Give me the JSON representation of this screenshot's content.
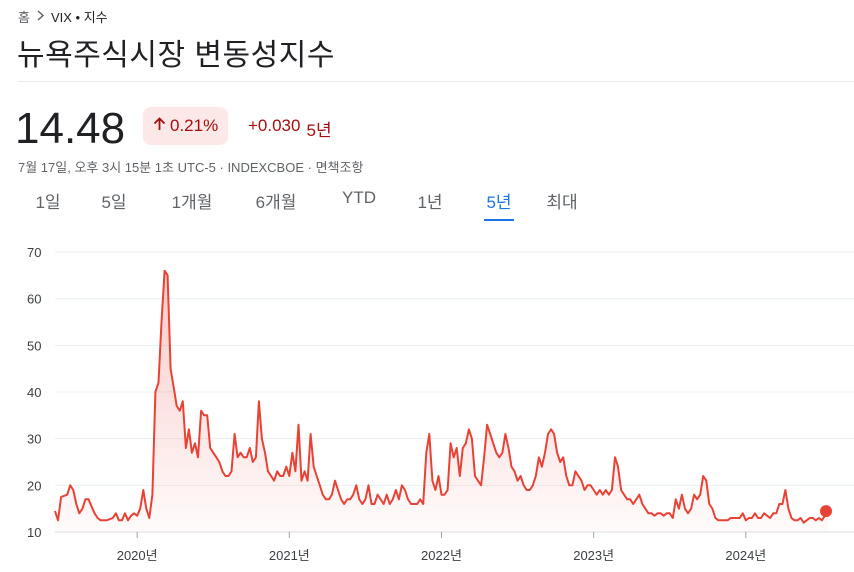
{
  "breadcrumb": {
    "home": "홈",
    "current": "VIX • 지수"
  },
  "title": "뉴욕주식시장 변동성지수",
  "quote": {
    "price": "14.48",
    "change_percent": "0.21%",
    "change_value": "+0.030",
    "change_period": "5년",
    "meta": "7월 17일, 오후 3시 15분 1초 UTC-5 · INDEXCBOE · 면책조항"
  },
  "tabs": [
    {
      "label": "1일"
    },
    {
      "label": "5일"
    },
    {
      "label": "1개월"
    },
    {
      "label": "6개월"
    },
    {
      "label": "YTD"
    },
    {
      "label": "1년"
    },
    {
      "label": "5년",
      "active": true
    },
    {
      "label": "최대"
    }
  ],
  "colors": {
    "line": "#e94235",
    "accent": "#1a73e8",
    "negative_bg": "#fce8e6",
    "negative_text": "#a50e0e"
  },
  "icons": {
    "breadcrumb_separator": "chevron-right-icon",
    "change_direction": "arrow-up-icon"
  },
  "chart_data": {
    "type": "area",
    "ylim": [
      10,
      70
    ],
    "yticks": [
      10,
      20,
      30,
      40,
      50,
      60,
      70
    ],
    "xlim": [
      2019.46,
      2024.54
    ],
    "xticks": [
      {
        "label": "2020년",
        "x": 2020.0
      },
      {
        "label": "2021년",
        "x": 2021.0
      },
      {
        "label": "2022년",
        "x": 2022.0
      },
      {
        "label": "2023년",
        "x": 2023.0
      },
      {
        "label": "2024년",
        "x": 2024.0
      }
    ],
    "grid": true,
    "series": [
      {
        "points": [
          [
            2019.46,
            14.5
          ],
          [
            2019.48,
            12.5
          ],
          [
            2019.5,
            17.5
          ],
          [
            2019.54,
            18
          ],
          [
            2019.56,
            20
          ],
          [
            2019.58,
            19
          ],
          [
            2019.6,
            16
          ],
          [
            2019.62,
            14
          ],
          [
            2019.64,
            15
          ],
          [
            2019.66,
            17
          ],
          [
            2019.68,
            17
          ],
          [
            2019.7,
            15.5
          ],
          [
            2019.72,
            14
          ],
          [
            2019.74,
            13
          ],
          [
            2019.76,
            12.5
          ],
          [
            2019.8,
            12.5
          ],
          [
            2019.84,
            13
          ],
          [
            2019.86,
            14
          ],
          [
            2019.88,
            12.5
          ],
          [
            2019.9,
            12.5
          ],
          [
            2019.92,
            14
          ],
          [
            2019.94,
            12.5
          ],
          [
            2019.96,
            13.5
          ],
          [
            2019.98,
            14
          ],
          [
            2020.0,
            13.5
          ],
          [
            2020.02,
            15
          ],
          [
            2020.04,
            19
          ],
          [
            2020.06,
            15
          ],
          [
            2020.08,
            13
          ],
          [
            2020.1,
            18
          ],
          [
            2020.12,
            40
          ],
          [
            2020.14,
            42
          ],
          [
            2020.16,
            55
          ],
          [
            2020.18,
            66
          ],
          [
            2020.2,
            65
          ],
          [
            2020.22,
            45
          ],
          [
            2020.24,
            41
          ],
          [
            2020.26,
            37
          ],
          [
            2020.28,
            36
          ],
          [
            2020.3,
            38
          ],
          [
            2020.32,
            28
          ],
          [
            2020.34,
            32
          ],
          [
            2020.36,
            27
          ],
          [
            2020.38,
            29
          ],
          [
            2020.4,
            26
          ],
          [
            2020.42,
            36
          ],
          [
            2020.44,
            35
          ],
          [
            2020.46,
            35
          ],
          [
            2020.48,
            28
          ],
          [
            2020.5,
            27
          ],
          [
            2020.52,
            26
          ],
          [
            2020.54,
            25
          ],
          [
            2020.56,
            23
          ],
          [
            2020.58,
            22
          ],
          [
            2020.6,
            22
          ],
          [
            2020.62,
            23
          ],
          [
            2020.64,
            31
          ],
          [
            2020.66,
            26
          ],
          [
            2020.68,
            27
          ],
          [
            2020.7,
            26
          ],
          [
            2020.72,
            26
          ],
          [
            2020.74,
            28
          ],
          [
            2020.76,
            25
          ],
          [
            2020.78,
            26
          ],
          [
            2020.8,
            38
          ],
          [
            2020.82,
            30
          ],
          [
            2020.84,
            27
          ],
          [
            2020.86,
            23
          ],
          [
            2020.88,
            22
          ],
          [
            2020.9,
            21
          ],
          [
            2020.92,
            23
          ],
          [
            2020.94,
            22
          ],
          [
            2020.96,
            22
          ],
          [
            2020.98,
            24
          ],
          [
            2021.0,
            22
          ],
          [
            2021.02,
            27
          ],
          [
            2021.04,
            23
          ],
          [
            2021.06,
            33
          ],
          [
            2021.08,
            21
          ],
          [
            2021.1,
            23
          ],
          [
            2021.12,
            21
          ],
          [
            2021.14,
            31
          ],
          [
            2021.16,
            24
          ],
          [
            2021.18,
            22
          ],
          [
            2021.2,
            20
          ],
          [
            2021.22,
            18
          ],
          [
            2021.24,
            17
          ],
          [
            2021.26,
            17
          ],
          [
            2021.28,
            18
          ],
          [
            2021.3,
            21
          ],
          [
            2021.32,
            19
          ],
          [
            2021.34,
            17
          ],
          [
            2021.36,
            16
          ],
          [
            2021.38,
            17
          ],
          [
            2021.4,
            17
          ],
          [
            2021.42,
            18
          ],
          [
            2021.44,
            20
          ],
          [
            2021.46,
            17
          ],
          [
            2021.48,
            16
          ],
          [
            2021.5,
            17
          ],
          [
            2021.52,
            20
          ],
          [
            2021.54,
            16
          ],
          [
            2021.56,
            16
          ],
          [
            2021.58,
            18
          ],
          [
            2021.6,
            17
          ],
          [
            2021.62,
            16
          ],
          [
            2021.64,
            18
          ],
          [
            2021.66,
            16
          ],
          [
            2021.68,
            17
          ],
          [
            2021.7,
            19
          ],
          [
            2021.72,
            17
          ],
          [
            2021.74,
            20
          ],
          [
            2021.76,
            19
          ],
          [
            2021.78,
            17
          ],
          [
            2021.8,
            16
          ],
          [
            2021.82,
            16
          ],
          [
            2021.84,
            16
          ],
          [
            2021.86,
            17
          ],
          [
            2021.88,
            16
          ],
          [
            2021.9,
            27
          ],
          [
            2021.92,
            31
          ],
          [
            2021.94,
            21
          ],
          [
            2021.96,
            19
          ],
          [
            2021.98,
            22
          ],
          [
            2022.0,
            18
          ],
          [
            2022.02,
            18
          ],
          [
            2022.04,
            19
          ],
          [
            2022.06,
            29
          ],
          [
            2022.08,
            26
          ],
          [
            2022.1,
            28
          ],
          [
            2022.12,
            22
          ],
          [
            2022.14,
            28
          ],
          [
            2022.16,
            29
          ],
          [
            2022.18,
            32
          ],
          [
            2022.2,
            30
          ],
          [
            2022.22,
            22
          ],
          [
            2022.24,
            21
          ],
          [
            2022.26,
            20
          ],
          [
            2022.28,
            26
          ],
          [
            2022.3,
            33
          ],
          [
            2022.32,
            31
          ],
          [
            2022.34,
            29
          ],
          [
            2022.36,
            27
          ],
          [
            2022.38,
            26
          ],
          [
            2022.4,
            27
          ],
          [
            2022.42,
            31
          ],
          [
            2022.44,
            28
          ],
          [
            2022.46,
            24
          ],
          [
            2022.48,
            23
          ],
          [
            2022.5,
            21
          ],
          [
            2022.52,
            22
          ],
          [
            2022.54,
            20
          ],
          [
            2022.56,
            19
          ],
          [
            2022.58,
            19
          ],
          [
            2022.6,
            20
          ],
          [
            2022.62,
            22
          ],
          [
            2022.64,
            26
          ],
          [
            2022.66,
            24
          ],
          [
            2022.68,
            27
          ],
          [
            2022.7,
            31
          ],
          [
            2022.72,
            32
          ],
          [
            2022.74,
            31
          ],
          [
            2022.76,
            27
          ],
          [
            2022.78,
            25
          ],
          [
            2022.8,
            26
          ],
          [
            2022.82,
            22
          ],
          [
            2022.84,
            20
          ],
          [
            2022.86,
            20
          ],
          [
            2022.88,
            23
          ],
          [
            2022.9,
            22
          ],
          [
            2022.92,
            21
          ],
          [
            2022.94,
            19
          ],
          [
            2022.96,
            20
          ],
          [
            2022.98,
            20
          ],
          [
            2023.0,
            19
          ],
          [
            2023.02,
            18
          ],
          [
            2023.04,
            19
          ],
          [
            2023.06,
            18
          ],
          [
            2023.08,
            19
          ],
          [
            2023.1,
            18
          ],
          [
            2023.12,
            19
          ],
          [
            2023.14,
            26
          ],
          [
            2023.16,
            24
          ],
          [
            2023.18,
            19
          ],
          [
            2023.2,
            18
          ],
          [
            2023.22,
            17
          ],
          [
            2023.24,
            17
          ],
          [
            2023.26,
            16
          ],
          [
            2023.28,
            17
          ],
          [
            2023.3,
            18
          ],
          [
            2023.32,
            16
          ],
          [
            2023.34,
            15
          ],
          [
            2023.36,
            14
          ],
          [
            2023.38,
            14
          ],
          [
            2023.4,
            13.5
          ],
          [
            2023.42,
            14
          ],
          [
            2023.44,
            14
          ],
          [
            2023.46,
            13.5
          ],
          [
            2023.48,
            14
          ],
          [
            2023.5,
            14
          ],
          [
            2023.52,
            13
          ],
          [
            2023.54,
            17
          ],
          [
            2023.56,
            15
          ],
          [
            2023.58,
            18
          ],
          [
            2023.6,
            15
          ],
          [
            2023.62,
            14
          ],
          [
            2023.64,
            15
          ],
          [
            2023.66,
            18
          ],
          [
            2023.68,
            17
          ],
          [
            2023.7,
            18
          ],
          [
            2023.72,
            22
          ],
          [
            2023.74,
            21
          ],
          [
            2023.76,
            16
          ],
          [
            2023.78,
            15
          ],
          [
            2023.8,
            13
          ],
          [
            2023.82,
            12.5
          ],
          [
            2023.84,
            12.5
          ],
          [
            2023.86,
            12.5
          ],
          [
            2023.88,
            12.5
          ],
          [
            2023.9,
            13
          ],
          [
            2023.92,
            13
          ],
          [
            2023.94,
            13
          ],
          [
            2023.96,
            13
          ],
          [
            2023.98,
            14
          ],
          [
            2024.0,
            12.5
          ],
          [
            2024.02,
            13
          ],
          [
            2024.04,
            13
          ],
          [
            2024.06,
            14
          ],
          [
            2024.08,
            13
          ],
          [
            2024.1,
            13
          ],
          [
            2024.12,
            14
          ],
          [
            2024.14,
            13.5
          ],
          [
            2024.16,
            13
          ],
          [
            2024.18,
            14
          ],
          [
            2024.2,
            14
          ],
          [
            2024.22,
            16
          ],
          [
            2024.24,
            16
          ],
          [
            2024.26,
            19
          ],
          [
            2024.28,
            15
          ],
          [
            2024.3,
            13
          ],
          [
            2024.32,
            12.5
          ],
          [
            2024.34,
            12.5
          ],
          [
            2024.36,
            13
          ],
          [
            2024.38,
            12
          ],
          [
            2024.4,
            12.5
          ],
          [
            2024.42,
            13
          ],
          [
            2024.44,
            13
          ],
          [
            2024.46,
            12.5
          ],
          [
            2024.48,
            13
          ],
          [
            2024.5,
            12.5
          ],
          [
            2024.52,
            13.5
          ],
          [
            2024.54,
            14.48
          ]
        ]
      }
    ]
  }
}
